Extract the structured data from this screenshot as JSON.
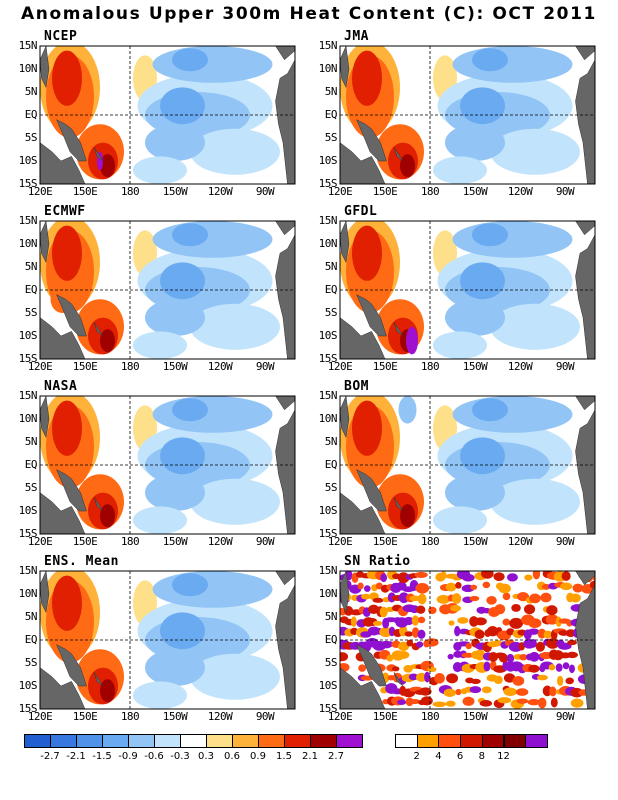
{
  "title": "Anomalous Upper 300m Heat Content (C): OCT 2011",
  "axes": {
    "lat_ticks": [
      "15N",
      "10N",
      "5N",
      "EQ",
      "5S",
      "10S",
      "15S"
    ],
    "lon_ticks": [
      "120E",
      "150E",
      "180",
      "150W",
      "120W",
      "90W"
    ],
    "lon_tick_values": [
      120,
      150,
      180,
      210,
      240,
      270
    ],
    "lat_range": [
      -15,
      15
    ],
    "lon_range": [
      120,
      290
    ],
    "reference_lines": [
      "EQ",
      "180"
    ]
  },
  "panels": [
    {
      "id": "ncep",
      "label": "NCEP"
    },
    {
      "id": "jma",
      "label": "JMA"
    },
    {
      "id": "ecmwf",
      "label": "ECMWF"
    },
    {
      "id": "gfdl",
      "label": "GFDL"
    },
    {
      "id": "nasa",
      "label": "NASA"
    },
    {
      "id": "bom",
      "label": "BOM"
    },
    {
      "id": "ens",
      "label": "ENS. Mean"
    },
    {
      "id": "sn",
      "label": "SN Ratio"
    }
  ],
  "colorbar_anomaly": {
    "labels": [
      "-2.7",
      "-2.1",
      "-1.5",
      "-0.9",
      "-0.6",
      "-0.3",
      "0.3",
      "0.6",
      "0.9",
      "1.5",
      "2.1",
      "2.7"
    ],
    "colors": [
      "#1f5fd0",
      "#3778e0",
      "#4f92ea",
      "#6aaaf0",
      "#92c5f6",
      "#c1e4fc",
      "#ffffff",
      "#ffe08a",
      "#ffb23a",
      "#ff6a14",
      "#e02000",
      "#a00000",
      "#a010d0"
    ]
  },
  "colorbar_sn": {
    "labels": [
      "2",
      "4",
      "6",
      "8",
      "12"
    ],
    "colors": [
      "#ffffff",
      "#ffa000",
      "#ff5010",
      "#d01800",
      "#a00000",
      "#800000",
      "#9010d0"
    ]
  },
  "colors": {
    "land": "#666666",
    "reference_line": "#000000"
  }
}
